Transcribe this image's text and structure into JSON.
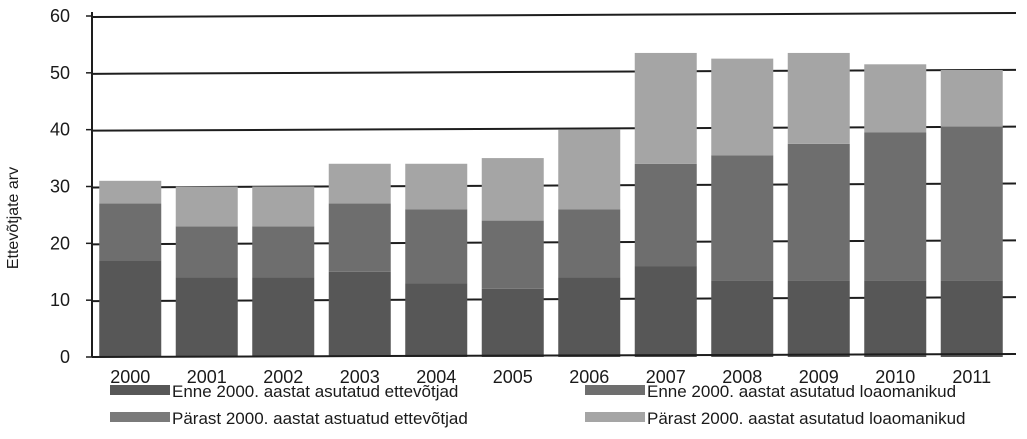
{
  "chart_data": {
    "type": "bar",
    "stacked": true,
    "ylabel": "Ettevõtjate arv",
    "xlabel": "",
    "ylim": [
      0,
      60
    ],
    "yticks": [
      0,
      10,
      20,
      30,
      40,
      50,
      60
    ],
    "grid": true,
    "legend_position": "bottom",
    "categories": [
      "2000",
      "2001",
      "2002",
      "2003",
      "2004",
      "2005",
      "2006",
      "2007",
      "2008",
      "2009",
      "2010",
      "2011"
    ],
    "series": [
      {
        "name": "Enne 2000. aastat asutatud ettevõtjad",
        "color": "#575757",
        "values": [
          17,
          14,
          14,
          15,
          13,
          12,
          14,
          16,
          13.5,
          13.5,
          13.5,
          13.5
        ]
      },
      {
        "name": "Pärast 2000. aastat astuatud ettevõtjad",
        "color": "#7a7a7a",
        "values": [
          0,
          0,
          0,
          0,
          0,
          0,
          0,
          0,
          0,
          0,
          0,
          0
        ]
      },
      {
        "name": "Enne 2000. aastat asutatud loaomanikud",
        "color": "#6e6e6e",
        "values": [
          10,
          9,
          9,
          12,
          13,
          12,
          12,
          18,
          22,
          24,
          26,
          27
        ]
      },
      {
        "name": "Pärast 2000. aastat asutatud loaomanikud",
        "color": "#a5a5a5",
        "values": [
          4,
          7,
          7,
          7,
          8,
          11,
          14,
          19.5,
          17,
          16,
          12,
          10
        ]
      }
    ]
  }
}
